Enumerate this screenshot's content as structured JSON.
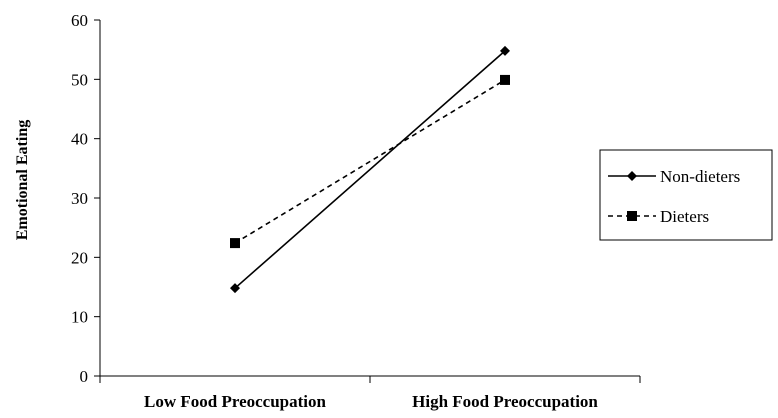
{
  "chart_data": {
    "type": "line",
    "title": "",
    "xlabel": "",
    "ylabel": "Emotional  Eating",
    "categories": [
      "Low Food Preoccupation",
      "High Food Preoccupation"
    ],
    "ylim": [
      0,
      60
    ],
    "yticks": [
      "0",
      "10",
      "20",
      "30",
      "40",
      "50",
      "60"
    ],
    "grid": false,
    "legend_position": "right",
    "series": [
      {
        "name": "Non-dieters",
        "values": [
          14.8,
          54.8
        ],
        "marker": "diamond",
        "line_style": "solid",
        "color": "#000000"
      },
      {
        "name": "Dieters",
        "values": [
          22.4,
          49.9
        ],
        "marker": "square",
        "line_style": "dashed",
        "color": "#000000"
      }
    ]
  }
}
